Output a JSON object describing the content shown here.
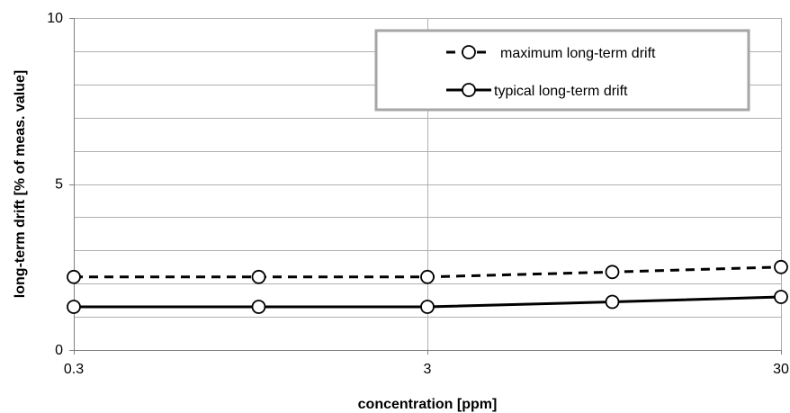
{
  "chart_data": {
    "type": "line",
    "x_scale": "log",
    "x_tick_labels": [
      "0.3",
      "3",
      "30"
    ],
    "x_ticks": [
      0.3,
      3,
      30
    ],
    "xlim": [
      0.3,
      30
    ],
    "ylim": [
      0,
      10
    ],
    "y_tick_labels": [
      "0",
      "5",
      "10"
    ],
    "y_ticks": [
      0,
      5,
      10
    ],
    "y_minor_grid_step": 1,
    "x_minor_grid": [
      0.6,
      1.0,
      1.5
    ],
    "grid": true,
    "legend_position": "top-right",
    "xlabel": "concentration [ppm]",
    "ylabel": "long-term drift [% of meas. value]",
    "x": [
      0.3,
      1.0,
      3,
      10,
      30
    ],
    "series": [
      {
        "name": "maximum long-term drift",
        "values": [
          2.2,
          2.2,
          2.2,
          2.35,
          2.5
        ],
        "line_style": "dashed",
        "marker": "open-circle"
      },
      {
        "name": "typical long-term drift",
        "values": [
          1.3,
          1.3,
          1.3,
          1.45,
          1.6
        ],
        "line_style": "solid",
        "marker": "open-circle"
      }
    ]
  },
  "colors": {
    "series": "#000000",
    "grid": "#b0b0b0",
    "axis": "#808080",
    "legend_border": "#a6a6a6",
    "marker_fill": "#ffffff"
  }
}
